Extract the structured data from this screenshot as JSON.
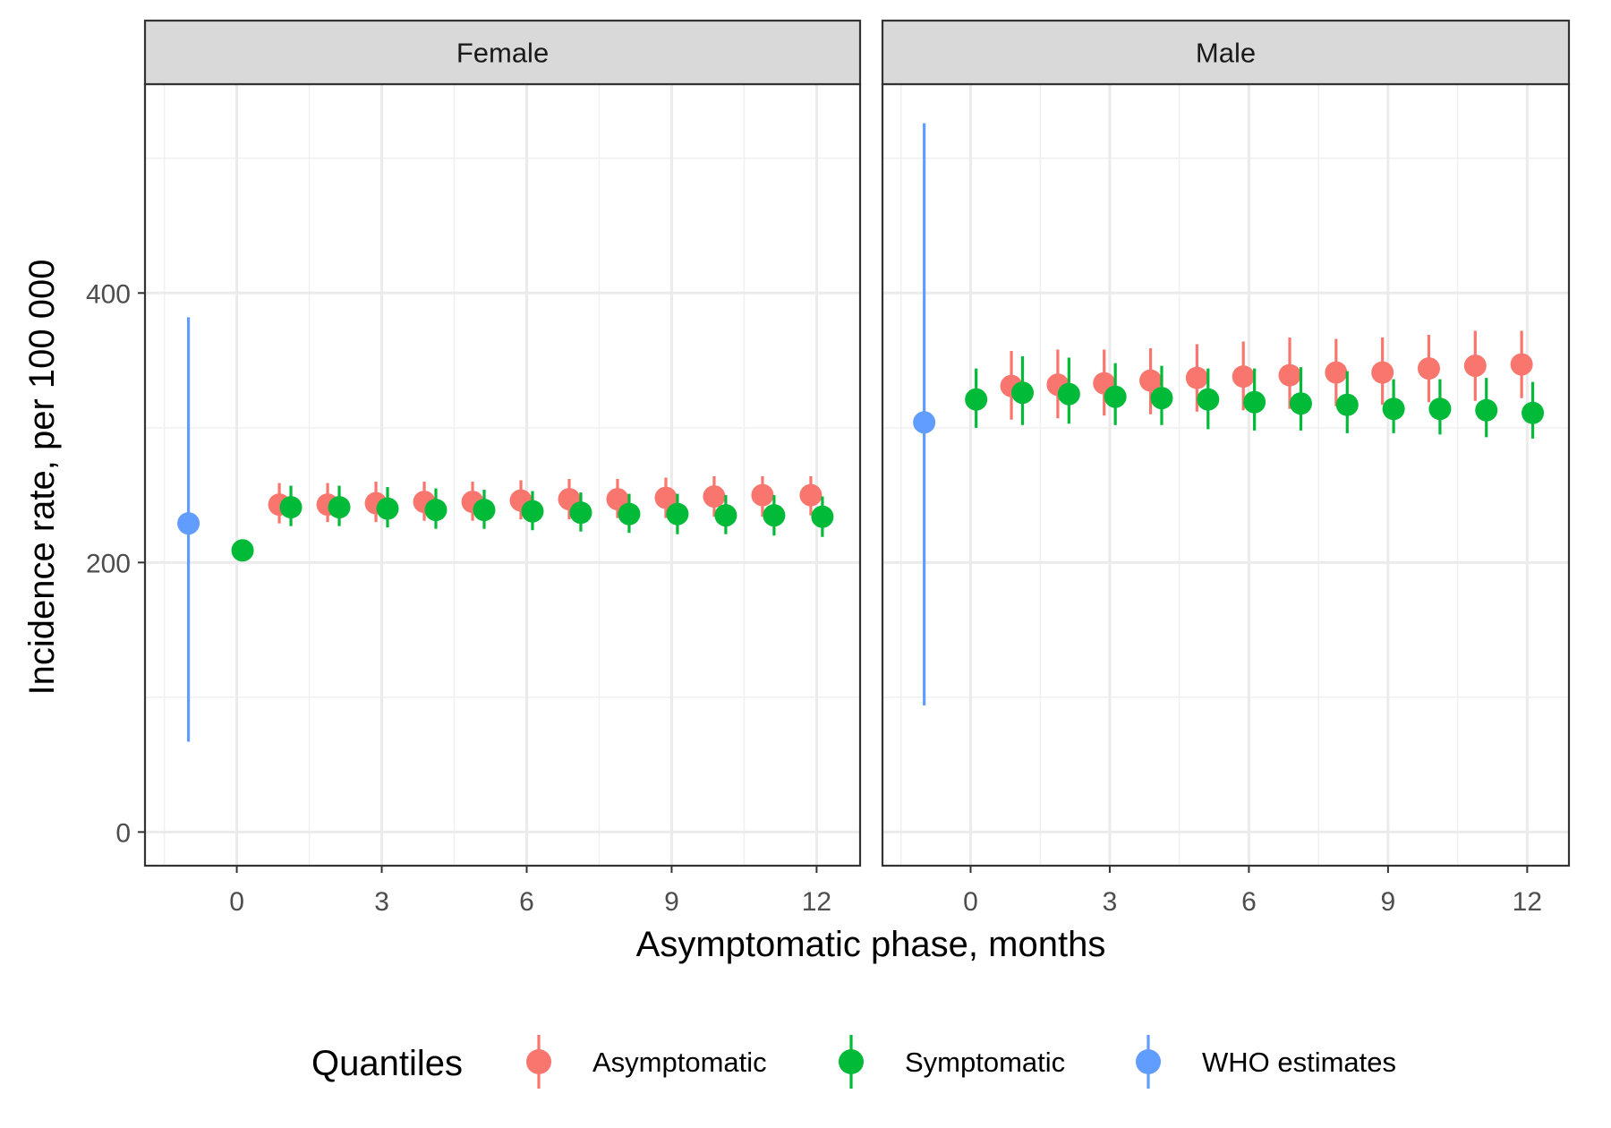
{
  "chart_data": {
    "type": "scatter",
    "error_bars": true,
    "facets": [
      "Female",
      "Male"
    ],
    "xlabel": "Asymptomatic phase, months",
    "ylabel": "Incidence rate, per 100 000",
    "x_ticks": [
      0,
      3,
      6,
      9,
      12
    ],
    "y_ticks": [
      0,
      200,
      400
    ],
    "xlim": [
      -1.9,
      12.9
    ],
    "ylim": [
      -25,
      555
    ],
    "grid": true,
    "legend": {
      "title": "Quantiles",
      "position": "bottom",
      "entries": [
        "Asymptomatic",
        "Symptomatic",
        "WHO estimates"
      ]
    },
    "colors": {
      "Asymptomatic": "#F8766D",
      "Symptomatic": "#00BA38",
      "WHO estimates": "#619CFF"
    },
    "series": [
      {
        "name": "Asymptomatic",
        "facet": "Female",
        "x": [
          1,
          2,
          3,
          4,
          5,
          6,
          7,
          8,
          9,
          10,
          11,
          12
        ],
        "y": [
          243,
          243,
          244,
          245,
          245,
          246,
          247,
          247,
          248,
          249,
          250,
          250
        ],
        "lower": [
          229,
          230,
          230,
          231,
          231,
          232,
          232,
          233,
          233,
          234,
          234,
          235
        ],
        "upper": [
          259,
          259,
          260,
          260,
          260,
          261,
          262,
          262,
          263,
          264,
          264,
          264
        ]
      },
      {
        "name": "Symptomatic",
        "facet": "Female",
        "x": [
          0,
          1,
          2,
          3,
          4,
          5,
          6,
          7,
          8,
          9,
          10,
          11,
          12
        ],
        "y": [
          209,
          241,
          241,
          240,
          239,
          239,
          238,
          237,
          236,
          236,
          235,
          235,
          234
        ],
        "lower": [
          202,
          227,
          227,
          226,
          225,
          225,
          224,
          223,
          222,
          221,
          221,
          220,
          219
        ],
        "upper": [
          217,
          257,
          257,
          256,
          255,
          254,
          253,
          252,
          251,
          251,
          250,
          250,
          249
        ]
      },
      {
        "name": "WHO estimates",
        "facet": "Female",
        "x": [
          -1
        ],
        "y": [
          229
        ],
        "lower": [
          67
        ],
        "upper": [
          382
        ]
      },
      {
        "name": "Asymptomatic",
        "facet": "Male",
        "x": [
          1,
          2,
          3,
          4,
          5,
          6,
          7,
          8,
          9,
          10,
          11,
          12
        ],
        "y": [
          331,
          332,
          333,
          335,
          337,
          338,
          339,
          341,
          341,
          344,
          346,
          347
        ],
        "lower": [
          306,
          307,
          309,
          310,
          312,
          313,
          314,
          316,
          317,
          319,
          320,
          322
        ],
        "upper": [
          357,
          358,
          358,
          359,
          362,
          364,
          367,
          366,
          367,
          369,
          372,
          372
        ]
      },
      {
        "name": "Symptomatic",
        "facet": "Male",
        "x": [
          0,
          1,
          2,
          3,
          4,
          5,
          6,
          7,
          8,
          9,
          10,
          11,
          12
        ],
        "y": [
          321,
          326,
          325,
          323,
          322,
          321,
          319,
          318,
          317,
          314,
          314,
          313,
          311
        ],
        "lower": [
          300,
          302,
          303,
          302,
          302,
          299,
          298,
          298,
          296,
          296,
          295,
          293,
          292
        ],
        "upper": [
          344,
          353,
          352,
          348,
          346,
          344,
          344,
          345,
          342,
          336,
          336,
          337,
          334
        ]
      },
      {
        "name": "WHO estimates",
        "facet": "Male",
        "x": [
          -1
        ],
        "y": [
          304
        ],
        "lower": [
          94
        ],
        "upper": [
          526
        ]
      }
    ]
  }
}
